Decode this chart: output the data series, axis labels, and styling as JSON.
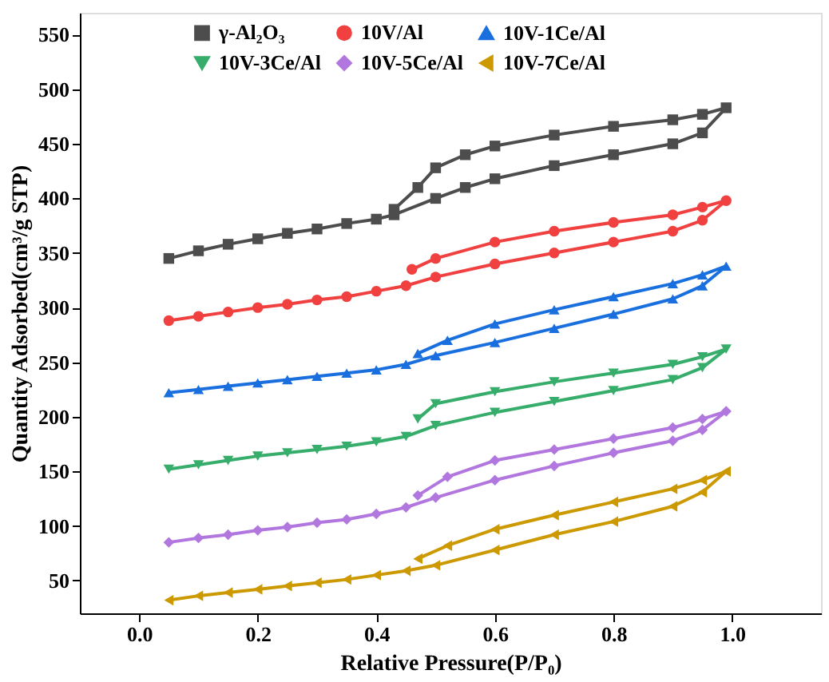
{
  "chart_data": {
    "type": "line",
    "xlabel": "Relative Pressure(P/P₀)",
    "ylabel": "Quantity Adsorbed(cm³/g STP)",
    "xlim": [
      -0.1,
      1.15
    ],
    "ylim": [
      20,
      570
    ],
    "xticks": [
      {
        "value": 0,
        "label": "0.0"
      },
      {
        "value": 0.2,
        "label": "0.2"
      },
      {
        "value": 0.4,
        "label": "0.4"
      },
      {
        "value": 0.6,
        "label": "0.6"
      },
      {
        "value": 0.8,
        "label": "0.8"
      },
      {
        "value": 1,
        "label": "1.0"
      }
    ],
    "yticks": [
      50,
      100,
      150,
      200,
      250,
      300,
      350,
      400,
      450,
      500,
      550
    ],
    "grid": false,
    "legend": "top",
    "line_style": "solid",
    "series": [
      {
        "name": "γ-Al₂O₃",
        "color": "#4d4d4d",
        "marker": "square",
        "x": [
          0.05,
          0.1,
          0.15,
          0.2,
          0.25,
          0.3,
          0.35,
          0.4,
          0.43,
          0.5,
          0.55,
          0.6,
          0.7,
          0.8,
          0.9,
          0.95,
          0.99,
          0.95,
          0.9,
          0.8,
          0.7,
          0.6,
          0.55,
          0.5,
          0.47,
          0.43
        ],
        "values": [
          345,
          352,
          358,
          363,
          368,
          372,
          377,
          381,
          385,
          400,
          410,
          418,
          430,
          440,
          450,
          460,
          483,
          477,
          472,
          466,
          458,
          448,
          440,
          428,
          410,
          390
        ]
      },
      {
        "name": "10V/Al",
        "color": "#f04040",
        "marker": "circle",
        "x": [
          0.05,
          0.1,
          0.15,
          0.2,
          0.25,
          0.3,
          0.35,
          0.4,
          0.45,
          0.5,
          0.6,
          0.7,
          0.8,
          0.9,
          0.95,
          0.99,
          0.95,
          0.9,
          0.8,
          0.7,
          0.6,
          0.5,
          0.46
        ],
        "values": [
          288,
          292,
          296,
          300,
          303,
          307,
          310,
          315,
          320,
          328,
          340,
          350,
          360,
          370,
          380,
          398,
          392,
          385,
          378,
          370,
          360,
          345,
          335
        ]
      },
      {
        "name": "10V-1Ce/Al",
        "color": "#1a6fdf",
        "marker": "triangle-up",
        "x": [
          0.05,
          0.1,
          0.15,
          0.2,
          0.25,
          0.3,
          0.35,
          0.4,
          0.45,
          0.5,
          0.6,
          0.7,
          0.8,
          0.9,
          0.95,
          0.99,
          0.95,
          0.9,
          0.8,
          0.7,
          0.6,
          0.52,
          0.47
        ],
        "values": [
          222,
          225,
          228,
          231,
          234,
          237,
          240,
          243,
          248,
          256,
          268,
          281,
          294,
          308,
          320,
          338,
          330,
          322,
          310,
          298,
          285,
          270,
          258
        ]
      },
      {
        "name": "10V-3Ce/Al",
        "color": "#37ad6b",
        "marker": "triangle-down",
        "x": [
          0.05,
          0.1,
          0.15,
          0.2,
          0.25,
          0.3,
          0.35,
          0.4,
          0.45,
          0.5,
          0.6,
          0.7,
          0.8,
          0.9,
          0.95,
          0.99,
          0.95,
          0.9,
          0.8,
          0.7,
          0.6,
          0.5,
          0.47
        ],
        "values": [
          152,
          156,
          160,
          164,
          167,
          170,
          173,
          177,
          182,
          192,
          204,
          214,
          224,
          234,
          245,
          262,
          255,
          248,
          240,
          232,
          223,
          212,
          198
        ]
      },
      {
        "name": "10V-5Ce/Al",
        "color": "#b177de",
        "marker": "diamond",
        "x": [
          0.05,
          0.1,
          0.15,
          0.2,
          0.25,
          0.3,
          0.35,
          0.4,
          0.45,
          0.5,
          0.6,
          0.7,
          0.8,
          0.9,
          0.95,
          0.99,
          0.95,
          0.9,
          0.8,
          0.7,
          0.6,
          0.52,
          0.47
        ],
        "values": [
          85,
          89,
          92,
          96,
          99,
          103,
          106,
          111,
          117,
          126,
          142,
          155,
          167,
          178,
          188,
          205,
          198,
          190,
          180,
          170,
          160,
          145,
          128
        ]
      },
      {
        "name": "10V-7Ce/Al",
        "color": "#cc9900",
        "marker": "triangle-left",
        "x": [
          0.05,
          0.1,
          0.15,
          0.2,
          0.25,
          0.3,
          0.35,
          0.4,
          0.45,
          0.5,
          0.6,
          0.7,
          0.8,
          0.9,
          0.95,
          0.99,
          0.95,
          0.9,
          0.8,
          0.7,
          0.6,
          0.52,
          0.47
        ],
        "values": [
          32,
          36,
          39,
          42,
          45,
          48,
          51,
          55,
          59,
          64,
          78,
          92,
          104,
          118,
          131,
          150,
          142,
          134,
          122,
          110,
          97,
          82,
          70
        ]
      }
    ]
  }
}
